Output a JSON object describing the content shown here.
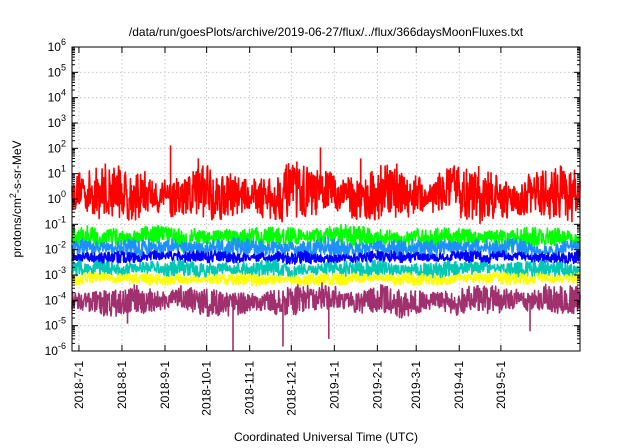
{
  "chart_data": {
    "type": "line",
    "title": "/data/run/goesPlots/archive/2019-06-27/flux/../flux/366daysMoonFluxes.txt",
    "xlabel": "Coordinated Universal Time (UTC)",
    "ylabel_base": "protons/cm",
    "ylabel_exp": "2",
    "ylabel_tail": "-s-sr-MeV",
    "x_range": [
      "2018-06-26",
      "2019-06-27"
    ],
    "y_scale": "log",
    "ylim": [
      1e-06,
      1000000.0
    ],
    "y_ticks": [
      {
        "mantissa": "10",
        "exp": "-6",
        "value": 1e-06
      },
      {
        "mantissa": "10",
        "exp": "-5",
        "value": 1e-05
      },
      {
        "mantissa": "10",
        "exp": "-4",
        "value": 0.0001
      },
      {
        "mantissa": "10",
        "exp": "-3",
        "value": 0.001
      },
      {
        "mantissa": "10",
        "exp": "-2",
        "value": 0.01
      },
      {
        "mantissa": "10",
        "exp": "-1",
        "value": 0.1
      },
      {
        "mantissa": "10",
        "exp": "0",
        "value": 1.0
      },
      {
        "mantissa": "10",
        "exp": "1",
        "value": 10.0
      },
      {
        "mantissa": "10",
        "exp": "2",
        "value": 100.0
      },
      {
        "mantissa": "10",
        "exp": "3",
        "value": 1000.0
      },
      {
        "mantissa": "10",
        "exp": "4",
        "value": 10000.0
      },
      {
        "mantissa": "10",
        "exp": "5",
        "value": 100000.0
      },
      {
        "mantissa": "10",
        "exp": "6",
        "value": 1000000.0
      }
    ],
    "x_ticks": [
      "2018-7-1",
      "2018-8-1",
      "2018-9-1",
      "2018-10-1",
      "2018-11-1",
      "2018-12-1",
      "2019-1-1",
      "2019-2-1",
      "2019-3-1",
      "2019-4-1",
      "2019-5-1"
    ],
    "grid": true,
    "legend": "none",
    "series": [
      {
        "color": "#ff0000",
        "typical_value": 1.5,
        "band_low": 0.1,
        "band_high": 12,
        "spikes": [
          {
            "date": "2018-07-20",
            "value": 25
          },
          {
            "date": "2018-09-05",
            "value": 130
          },
          {
            "date": "2018-09-25",
            "value": 40
          },
          {
            "date": "2018-12-05",
            "value": 30
          },
          {
            "date": "2018-12-22",
            "value": 110
          },
          {
            "date": "2019-01-20",
            "value": 40
          },
          {
            "date": "2019-02-15",
            "value": 25
          },
          {
            "date": "2019-04-15",
            "value": 20
          }
        ]
      },
      {
        "color": "#00ff00",
        "typical_value": 0.03,
        "band_low": 0.012,
        "band_high": 0.08,
        "spikes": []
      },
      {
        "color": "#1e90ff",
        "typical_value": 0.012,
        "band_low": 0.006,
        "band_high": 0.03,
        "spikes": []
      },
      {
        "color": "#0000ff",
        "typical_value": 0.005,
        "band_low": 0.003,
        "band_high": 0.009,
        "spikes": []
      },
      {
        "color": "#00c8b4",
        "typical_value": 0.0018,
        "band_low": 0.0009,
        "band_high": 0.004,
        "spikes": []
      },
      {
        "color": "#ffff00",
        "typical_value": 0.0007,
        "band_low": 0.0004,
        "band_high": 0.0012,
        "spikes": []
      },
      {
        "color": "#a0306e",
        "typical_value": 0.0001,
        "band_low": 3e-05,
        "band_high": 0.0004,
        "spikes": [
          {
            "date": "2018-08-05",
            "value": 1.2e-05
          },
          {
            "date": "2018-10-20",
            "value": 1e-06
          },
          {
            "date": "2018-11-25",
            "value": 1.5e-06
          },
          {
            "date": "2018-12-28",
            "value": 3e-06
          },
          {
            "date": "2019-05-22",
            "value": 6e-06
          }
        ]
      }
    ]
  }
}
